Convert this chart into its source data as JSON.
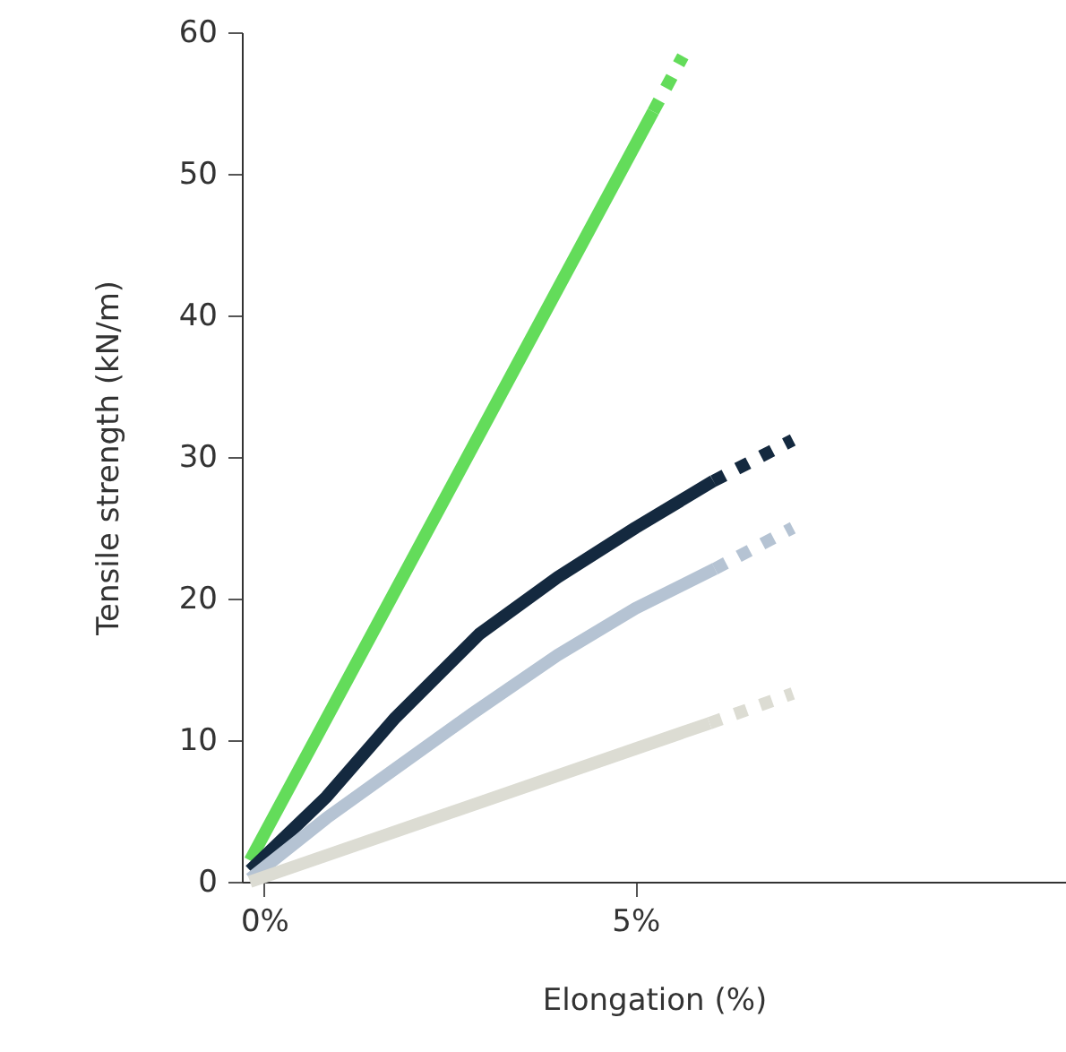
{
  "chart_data": {
    "type": "line",
    "xlabel": "Elongation (%)",
    "ylabel": "Tensile strength (kN/m)",
    "xlim": [
      -0.3,
      10.8
    ],
    "xticks": [
      {
        "value": 0,
        "label": "0%"
      },
      {
        "value": 5,
        "label": "5%"
      }
    ],
    "ylim": [
      0,
      60
    ],
    "yticks": [
      0,
      10,
      20,
      30,
      40,
      50,
      60
    ],
    "grid": false,
    "marker": "none",
    "series": [
      {
        "color": "#63dc5a",
        "line_style": "solid",
        "x": [
          -0.19,
          5.24
        ],
        "values": [
          1.5,
          54.4
        ]
      },
      {
        "color": "#63dc5a",
        "line_style": "dashed",
        "x": [
          5.24,
          5.64
        ],
        "values": [
          54.4,
          58.3
        ]
      },
      {
        "color": "#14293f",
        "line_style": "solid",
        "x": [
          -0.19,
          0.84,
          1.77,
          2.9,
          3.95,
          5,
          6.05
        ],
        "values": [
          0.8,
          6,
          11.6,
          17.5,
          21.5,
          25,
          28.3
        ]
      },
      {
        "color": "#14293f",
        "line_style": "dashed",
        "x": [
          6.05,
          7.12
        ],
        "values": [
          28.3,
          31.2
        ]
      },
      {
        "color": "#b5c3d3",
        "line_style": "solid",
        "x": [
          -0.19,
          0.84,
          2.81,
          3.95,
          5,
          6.07
        ],
        "values": [
          0.2,
          4.5,
          11.9,
          16,
          19.3,
          22.1
        ]
      },
      {
        "color": "#b5c3d3",
        "line_style": "dashed",
        "x": [
          6.07,
          7.12
        ],
        "values": [
          22.1,
          25
        ]
      },
      {
        "color": "#dcdcd3",
        "line_style": "solid",
        "x": [
          -0.19,
          6.0
        ],
        "values": [
          0,
          11.2
        ]
      },
      {
        "color": "#dcdcd3",
        "line_style": "dashed",
        "x": [
          6.0,
          7.12
        ],
        "values": [
          11.2,
          13.3
        ]
      }
    ]
  }
}
